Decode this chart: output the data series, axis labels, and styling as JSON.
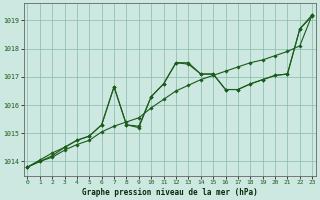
{
  "title": "Graphe pression niveau de la mer (hPa)",
  "background_color": "#cce8e0",
  "grid_color": "#88bbaa",
  "line_color": "#1a5c1a",
  "xlim": [
    -0.3,
    23.3
  ],
  "ylim": [
    1013.5,
    1019.6
  ],
  "yticks": [
    1014,
    1015,
    1016,
    1017,
    1018,
    1019
  ],
  "xticks": [
    0,
    1,
    2,
    3,
    4,
    5,
    6,
    7,
    8,
    9,
    10,
    11,
    12,
    13,
    14,
    15,
    16,
    17,
    18,
    19,
    20,
    21,
    22,
    23
  ],
  "series1": [
    1013.8,
    1014.0,
    1014.15,
    1014.4,
    1014.6,
    1014.75,
    1015.05,
    1015.25,
    1015.4,
    1015.55,
    1015.9,
    1016.2,
    1016.5,
    1016.7,
    1016.9,
    1017.05,
    1017.2,
    1017.35,
    1017.5,
    1017.6,
    1017.75,
    1017.9,
    1018.1,
    1019.2
  ],
  "series2": [
    1013.8,
    1014.0,
    1014.2,
    1014.5,
    1014.75,
    1014.9,
    1015.3,
    1016.65,
    1015.3,
    1015.2,
    1016.3,
    1016.75,
    1017.5,
    1017.5,
    1017.1,
    1017.1,
    1016.55,
    1016.55,
    1016.75,
    1016.9,
    1017.05,
    1017.1,
    1018.7,
    1019.15
  ],
  "series3": [
    1013.8,
    1014.05,
    1014.3,
    1014.5,
    1014.75,
    1014.9,
    1015.3,
    1016.65,
    1015.3,
    1015.25,
    1016.3,
    1016.75,
    1017.5,
    1017.45,
    1017.1,
    1017.1,
    1016.55,
    1016.55,
    1016.75,
    1016.9,
    1017.05,
    1017.1,
    1018.7,
    1019.2
  ]
}
